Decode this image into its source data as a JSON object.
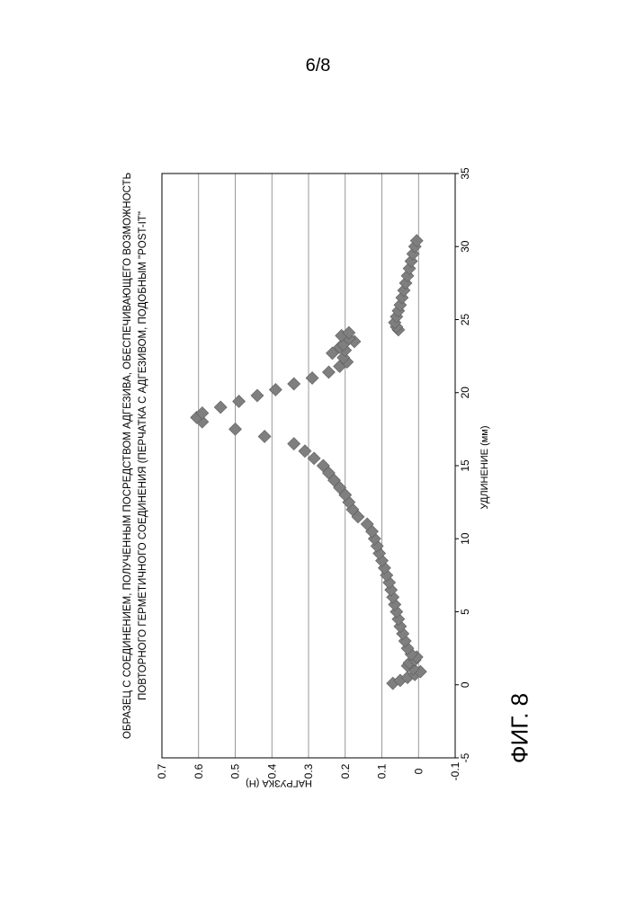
{
  "page": {
    "number": "6/8"
  },
  "figure": {
    "caption": "ФИГ. 8"
  },
  "chart_data": {
    "type": "scatter",
    "title": "ОБРАЗЕЦ С СОЕДИНЕНИЕМ, ПОЛУЧЕННЫМ ПОСРЕДСТВОМ АДГЕЗИВА, ОБЕСПЕЧИВАЮЩЕГО ВОЗМОЖНОСТЬ",
    "subtitle": "ПОВТОРНОГО ГЕРМЕТИЧНОГО СОЕДИНЕНИЯ (ПЕРЧАТКА С АДГЕЗИВОМ, ПОДОБНЫМ \"POST-IT\"",
    "xlabel": "УДЛИНЕНИЕ (мм)",
    "ylabel": "НАГРУЗКА (Н)",
    "xlim": [
      -5,
      35
    ],
    "ylim": [
      -0.1,
      0.7
    ],
    "x_ticks": [
      -5,
      0,
      5,
      10,
      15,
      20,
      25,
      30,
      35
    ],
    "y_ticks": [
      -0.1,
      0,
      0.1,
      0.2,
      0.3,
      0.4,
      0.5,
      0.6,
      0.7
    ],
    "x_tick_labels": [
      "-5",
      "0",
      "5",
      "10",
      "15",
      "20",
      "25",
      "30",
      "35"
    ],
    "y_tick_labels": [
      "-0.1",
      "0",
      "0.1",
      "0.2",
      "0.3",
      "0.4",
      "0.5",
      "0.6",
      "0.7"
    ],
    "grid": "horizontal",
    "rotated": "90° counter-clockwise on page",
    "marker": "diamond",
    "marker_color": "#7f7f7f",
    "grid_color": "#808080",
    "series": [
      {
        "points": [
          [
            0.1,
            0.07
          ],
          [
            0.3,
            0.05
          ],
          [
            0.5,
            0.03
          ],
          [
            0.7,
            0.01
          ],
          [
            0.9,
            -0.005
          ],
          [
            1.1,
            0.015
          ],
          [
            1.3,
            0.03
          ],
          [
            1.5,
            0.025
          ],
          [
            1.7,
            0.01
          ],
          [
            1.9,
            0.005
          ],
          [
            2.1,
            0.02
          ],
          [
            2.5,
            0.03
          ],
          [
            3.0,
            0.037
          ],
          [
            3.5,
            0.043
          ],
          [
            4.0,
            0.05
          ],
          [
            4.5,
            0.055
          ],
          [
            5.0,
            0.06
          ],
          [
            5.5,
            0.065
          ],
          [
            6.0,
            0.07
          ],
          [
            6.5,
            0.075
          ],
          [
            7.0,
            0.08
          ],
          [
            7.5,
            0.087
          ],
          [
            8.0,
            0.093
          ],
          [
            8.5,
            0.1
          ],
          [
            9.0,
            0.107
          ],
          [
            9.5,
            0.113
          ],
          [
            10.0,
            0.12
          ],
          [
            10.5,
            0.127
          ],
          [
            11.0,
            0.14
          ],
          [
            11.5,
            0.165
          ],
          [
            12.0,
            0.18
          ],
          [
            12.5,
            0.19
          ],
          [
            13.0,
            0.2
          ],
          [
            13.5,
            0.215
          ],
          [
            14.0,
            0.23
          ],
          [
            14.5,
            0.245
          ],
          [
            15.0,
            0.26
          ],
          [
            15.5,
            0.285
          ],
          [
            16.0,
            0.31
          ],
          [
            16.5,
            0.34
          ],
          [
            17.0,
            0.42
          ],
          [
            17.5,
            0.5
          ],
          [
            18.0,
            0.59
          ],
          [
            18.3,
            0.605
          ],
          [
            18.6,
            0.59
          ],
          [
            19.0,
            0.54
          ],
          [
            19.4,
            0.49
          ],
          [
            19.8,
            0.44
          ],
          [
            20.2,
            0.39
          ],
          [
            20.6,
            0.34
          ],
          [
            21.0,
            0.29
          ],
          [
            21.4,
            0.245
          ],
          [
            21.8,
            0.215
          ],
          [
            22.1,
            0.195
          ],
          [
            22.4,
            0.205
          ],
          [
            22.7,
            0.235
          ],
          [
            22.9,
            0.2
          ],
          [
            23.1,
            0.215
          ],
          [
            23.3,
            0.205
          ],
          [
            23.5,
            0.175
          ],
          [
            23.7,
            0.19
          ],
          [
            23.9,
            0.21
          ],
          [
            24.1,
            0.19
          ],
          [
            24.3,
            0.055
          ],
          [
            24.5,
            0.06
          ],
          [
            24.8,
            0.065
          ],
          [
            25.2,
            0.06
          ],
          [
            25.6,
            0.055
          ],
          [
            26.0,
            0.05
          ],
          [
            26.5,
            0.045
          ],
          [
            27.0,
            0.04
          ],
          [
            27.5,
            0.035
          ],
          [
            28.0,
            0.03
          ],
          [
            28.5,
            0.025
          ],
          [
            29.0,
            0.02
          ],
          [
            29.5,
            0.015
          ],
          [
            30.0,
            0.01
          ],
          [
            30.4,
            0.005
          ]
        ]
      }
    ]
  }
}
